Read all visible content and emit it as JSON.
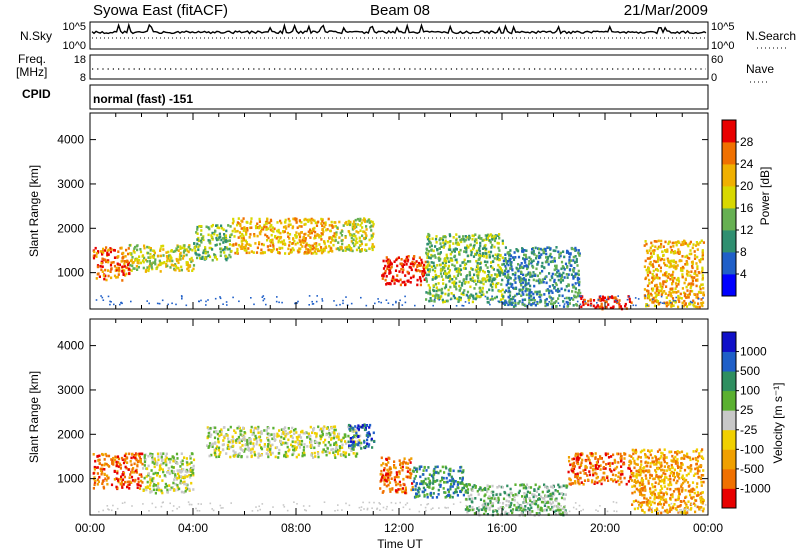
{
  "header": {
    "station": "Syowa East (fitACF)",
    "beam": "Beam 08",
    "date": "21/Mar/2009"
  },
  "top_panels": {
    "nsky_label": "N.Sky",
    "nsky_ticks": [
      "10^5",
      "10^0"
    ],
    "nsearch_label": "N.Search",
    "nsearch_ticks": [
      "10^5",
      "10^0"
    ],
    "freq_label": "Freq.",
    "freq_unit": "[MHz]",
    "freq_ticks": [
      "18",
      "8"
    ],
    "nave_label": "Nave",
    "nave_ticks": [
      "60",
      "0"
    ],
    "cpid_label": "CPID",
    "cpid_value": "normal (fast) -151"
  },
  "chart_data": [
    {
      "type": "heatmap",
      "panel": "power",
      "ylabel": "Slant Range [km]",
      "yticks": [
        "1000",
        "2000",
        "3000",
        "4000"
      ],
      "ylim": [
        180,
        4600
      ],
      "xlim_hours": [
        0,
        24
      ],
      "colorbar_label": "Power [dB]",
      "colorbar_ticks": [
        "4",
        "8",
        "12",
        "16",
        "20",
        "24",
        "28"
      ],
      "colorbar_colors": [
        "#0000ff",
        "#1f5fc8",
        "#2f8f70",
        "#66b052",
        "#d8d800",
        "#f0b000",
        "#f07000",
        "#e80000"
      ],
      "echo_regions": [
        {
          "t": [
            0.1,
            1.5
          ],
          "r": [
            850,
            1600
          ],
          "level": 6
        },
        {
          "t": [
            1.5,
            4.0
          ],
          "r": [
            1050,
            1650
          ],
          "level": 4
        },
        {
          "t": [
            4.0,
            5.5
          ],
          "r": [
            1300,
            2100
          ],
          "level": 3
        },
        {
          "t": [
            5.5,
            9.5
          ],
          "r": [
            1450,
            2250
          ],
          "level": 5
        },
        {
          "t": [
            9.5,
            11.0
          ],
          "r": [
            1500,
            2250
          ],
          "level": 4
        },
        {
          "t": [
            11.3,
            13.0
          ],
          "r": [
            750,
            1400
          ],
          "level": 7
        },
        {
          "t": [
            13.0,
            16.0
          ],
          "r": [
            350,
            1900
          ],
          "level": 3
        },
        {
          "t": [
            16.0,
            19.0
          ],
          "r": [
            250,
            1600
          ],
          "level": 2
        },
        {
          "t": [
            19.0,
            21.0
          ],
          "r": [
            200,
            500
          ],
          "level": 7
        },
        {
          "t": [
            21.5,
            23.8
          ],
          "r": [
            250,
            1750
          ],
          "level": 5
        }
      ]
    },
    {
      "type": "heatmap",
      "panel": "velocity",
      "ylabel": "Slant Range [km]",
      "yticks": [
        "1000",
        "2000",
        "3000",
        "4000"
      ],
      "ylim": [
        180,
        4600
      ],
      "xlim_hours": [
        0,
        24
      ],
      "xticks": [
        "00:00",
        "04:00",
        "08:00",
        "12:00",
        "16:00",
        "20:00",
        "00:00"
      ],
      "xlabel": "Time UT",
      "colorbar_label": "Velocity [m s⁻¹]",
      "colorbar_ticks": [
        "-1000",
        "-500",
        "-100",
        "-25",
        "25",
        "100",
        "500",
        "1000"
      ],
      "colorbar_colors": [
        "#e80000",
        "#f07000",
        "#f0a000",
        "#f0d000",
        "#c8c8c8",
        "#5ab030",
        "#2f8f60",
        "#1f5fc8",
        "#1010c8"
      ],
      "echo_regions": [
        {
          "t": [
            0.1,
            2.0
          ],
          "r": [
            800,
            1600
          ],
          "level": 1
        },
        {
          "t": [
            2.0,
            4.0
          ],
          "r": [
            700,
            1600
          ],
          "level": 4
        },
        {
          "t": [
            4.5,
            10.5
          ],
          "r": [
            1500,
            2200
          ],
          "level": 4
        },
        {
          "t": [
            10.0,
            11.0
          ],
          "r": [
            1700,
            2250
          ],
          "level": 7
        },
        {
          "t": [
            11.2,
            12.5
          ],
          "r": [
            700,
            1500
          ],
          "level": 1
        },
        {
          "t": [
            12.5,
            14.5
          ],
          "r": [
            600,
            1300
          ],
          "level": 6
        },
        {
          "t": [
            14.5,
            18.5
          ],
          "r": [
            200,
            900
          ],
          "level": 5
        },
        {
          "t": [
            18.5,
            21.0
          ],
          "r": [
            900,
            1600
          ],
          "level": 1
        },
        {
          "t": [
            21.0,
            23.8
          ],
          "r": [
            250,
            1700
          ],
          "level": 2
        }
      ]
    }
  ]
}
